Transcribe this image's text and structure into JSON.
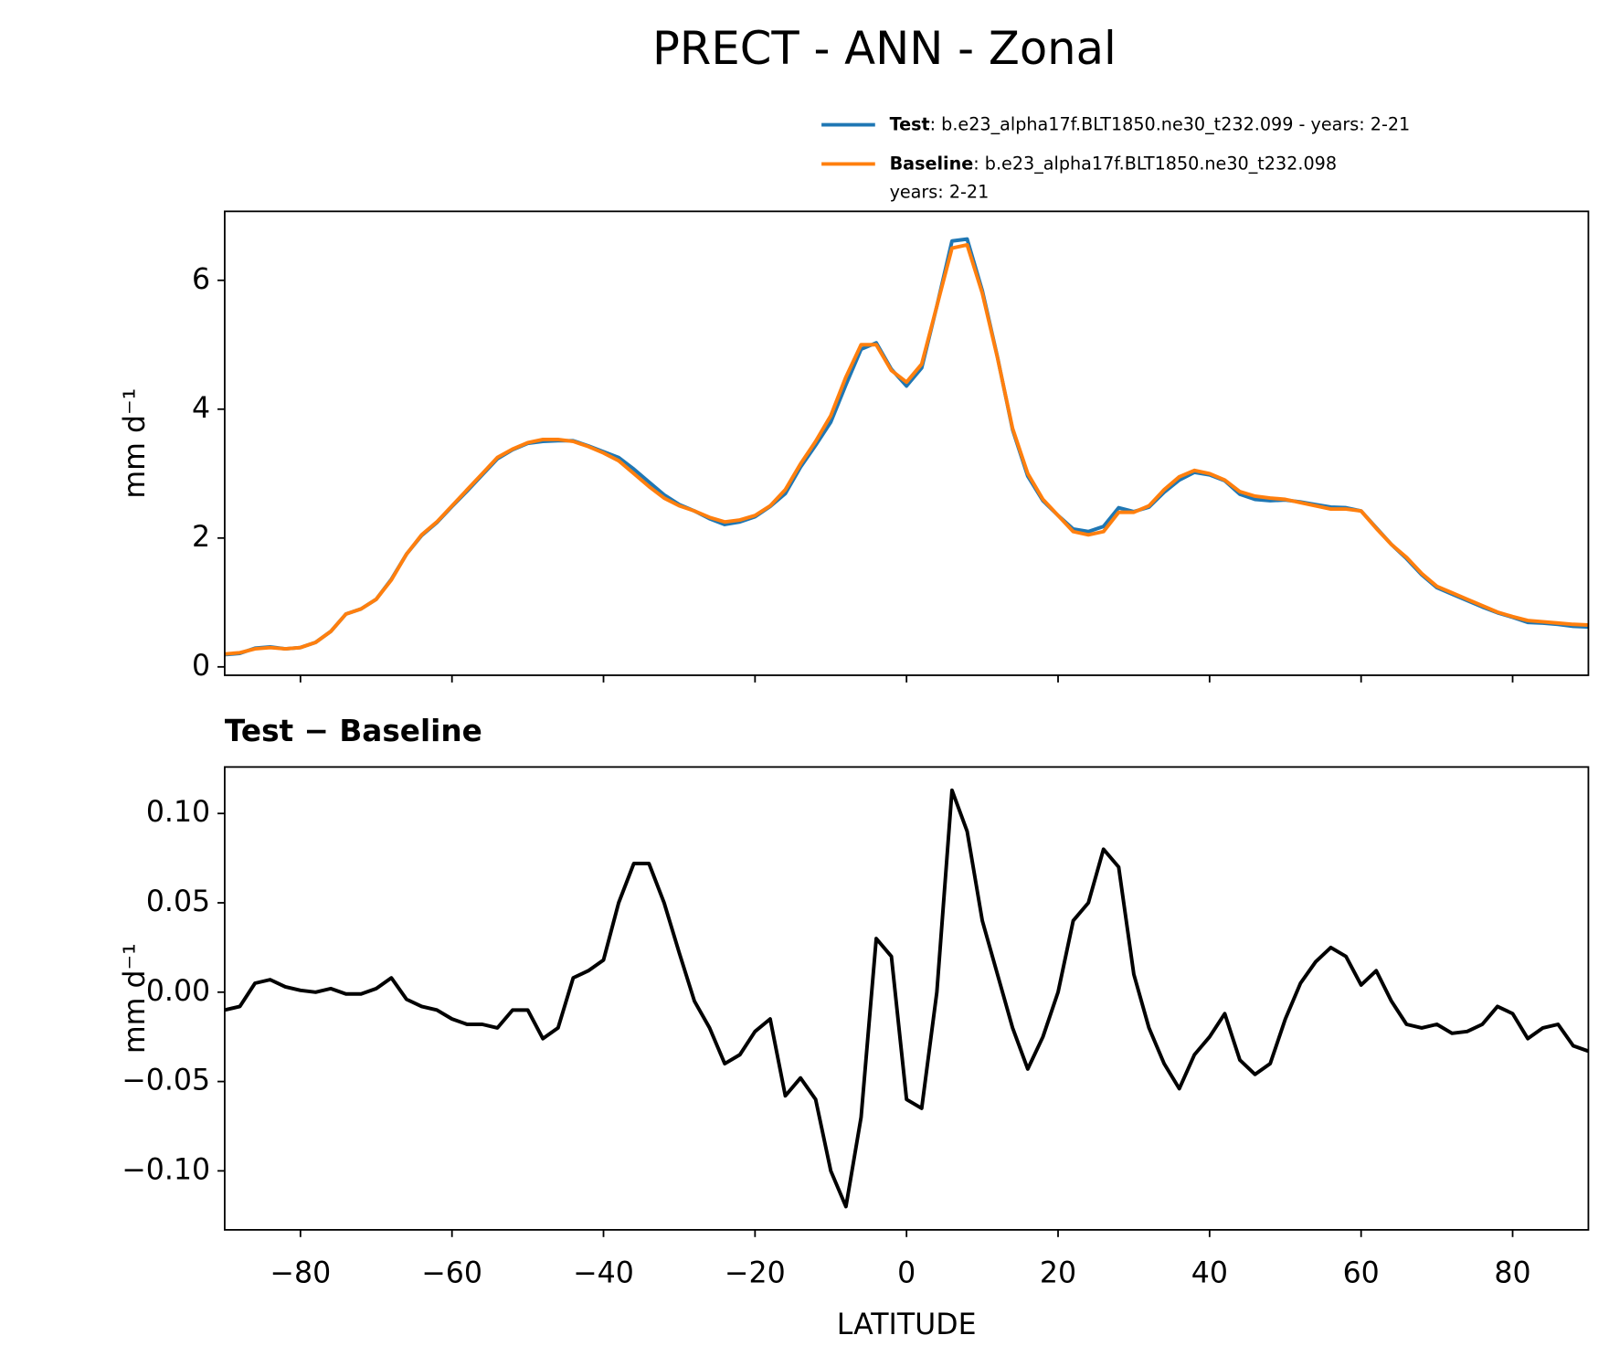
{
  "chart_data": [
    {
      "type": "line",
      "title": "PRECT - ANN - Zonal",
      "ylabel": "mm d⁻¹",
      "x": [
        -90,
        -88,
        -86,
        -84,
        -82,
        -80,
        -78,
        -76,
        -74,
        -72,
        -70,
        -68,
        -66,
        -64,
        -62,
        -60,
        -58,
        -56,
        -54,
        -52,
        -50,
        -48,
        -46,
        -44,
        -42,
        -40,
        -38,
        -36,
        -34,
        -32,
        -30,
        -28,
        -26,
        -24,
        -22,
        -20,
        -18,
        -16,
        -14,
        -12,
        -10,
        -8,
        -6,
        -4,
        -2,
        0,
        2,
        4,
        6,
        8,
        10,
        12,
        14,
        16,
        18,
        20,
        22,
        24,
        26,
        28,
        30,
        32,
        34,
        36,
        38,
        40,
        42,
        44,
        46,
        48,
        50,
        52,
        54,
        56,
        58,
        60,
        62,
        64,
        66,
        68,
        70,
        72,
        74,
        76,
        78,
        80,
        82,
        84,
        86,
        88,
        90
      ],
      "series": [
        {
          "name": "Test",
          "description": [
            ": b.e23_alpha17f.BLT1850.ne30_t232.099 - years: 2-21"
          ],
          "color": "#1f77b4",
          "values": [
            0.19,
            0.21,
            0.29,
            0.31,
            0.28,
            0.3,
            0.38,
            0.55,
            0.82,
            0.9,
            1.05,
            1.36,
            1.75,
            2.04,
            2.24,
            2.49,
            2.73,
            2.98,
            3.23,
            3.37,
            3.47,
            3.5,
            3.51,
            3.51,
            3.43,
            3.34,
            3.25,
            3.07,
            2.87,
            2.67,
            2.52,
            2.42,
            2.3,
            2.21,
            2.25,
            2.33,
            2.49,
            2.69,
            3.1,
            3.44,
            3.8,
            4.38,
            4.93,
            5.03,
            4.62,
            4.36,
            4.64,
            5.6,
            6.61,
            6.64,
            5.84,
            4.81,
            3.68,
            2.96,
            2.58,
            2.35,
            2.14,
            2.1,
            2.18,
            2.47,
            2.41,
            2.48,
            2.71,
            2.9,
            3.02,
            2.98,
            2.89,
            2.68,
            2.6,
            2.58,
            2.59,
            2.56,
            2.52,
            2.48,
            2.47,
            2.42,
            2.16,
            1.9,
            1.68,
            1.43,
            1.23,
            1.13,
            1.03,
            0.93,
            0.84,
            0.77,
            0.69,
            0.68,
            0.66,
            0.63,
            0.62
          ]
        },
        {
          "name": "Baseline",
          "description": [
            ": b.e23_alpha17f.BLT1850.ne30_t232.098",
            "years: 2-21"
          ],
          "color": "#ff7f0e",
          "values": [
            0.2,
            0.22,
            0.28,
            0.3,
            0.28,
            0.3,
            0.38,
            0.55,
            0.82,
            0.9,
            1.05,
            1.35,
            1.75,
            2.05,
            2.25,
            2.5,
            2.75,
            3.0,
            3.25,
            3.38,
            3.48,
            3.53,
            3.53,
            3.5,
            3.42,
            3.32,
            3.2,
            3.0,
            2.8,
            2.62,
            2.5,
            2.42,
            2.32,
            2.25,
            2.28,
            2.35,
            2.5,
            2.75,
            3.15,
            3.5,
            3.9,
            4.5,
            5.0,
            5.0,
            4.6,
            4.42,
            4.7,
            5.6,
            6.5,
            6.55,
            5.8,
            4.8,
            3.7,
            3.0,
            2.6,
            2.35,
            2.1,
            2.05,
            2.1,
            2.4,
            2.4,
            2.5,
            2.75,
            2.95,
            3.05,
            3.0,
            2.9,
            2.72,
            2.65,
            2.62,
            2.6,
            2.55,
            2.5,
            2.45,
            2.45,
            2.42,
            2.15,
            1.9,
            1.7,
            1.45,
            1.25,
            1.15,
            1.05,
            0.95,
            0.85,
            0.78,
            0.72,
            0.7,
            0.68,
            0.66,
            0.65
          ]
        }
      ],
      "xlim": [
        -90,
        90
      ],
      "xticks": [
        -80,
        -60,
        -40,
        -20,
        0,
        20,
        40,
        60,
        80
      ],
      "ylim": [
        -0.13,
        7.07
      ],
      "yticks": [
        0,
        2,
        4,
        6
      ]
    },
    {
      "type": "line",
      "title": "Test − Baseline",
      "ylabel": "mm d⁻¹",
      "xlabel": "LATITUDE",
      "x": [
        -90,
        -88,
        -86,
        -84,
        -82,
        -80,
        -78,
        -76,
        -74,
        -72,
        -70,
        -68,
        -66,
        -64,
        -62,
        -60,
        -58,
        -56,
        -54,
        -52,
        -50,
        -48,
        -46,
        -44,
        -42,
        -40,
        -38,
        -36,
        -34,
        -32,
        -30,
        -28,
        -26,
        -24,
        -22,
        -20,
        -18,
        -16,
        -14,
        -12,
        -10,
        -8,
        -6,
        -4,
        -2,
        0,
        2,
        4,
        6,
        8,
        10,
        12,
        14,
        16,
        18,
        20,
        22,
        24,
        26,
        28,
        30,
        32,
        34,
        36,
        38,
        40,
        42,
        44,
        46,
        48,
        50,
        52,
        54,
        56,
        58,
        60,
        62,
        64,
        66,
        68,
        70,
        72,
        74,
        76,
        78,
        80,
        82,
        84,
        86,
        88,
        90
      ],
      "color": "#000000",
      "values": [
        -0.01,
        -0.008,
        0.005,
        0.007,
        0.003,
        0.001,
        0.0,
        0.002,
        -0.001,
        -0.001,
        0.002,
        0.008,
        -0.004,
        -0.008,
        -0.01,
        -0.015,
        -0.018,
        -0.018,
        -0.02,
        -0.01,
        -0.01,
        -0.026,
        -0.02,
        0.008,
        0.012,
        0.018,
        0.05,
        0.072,
        0.072,
        0.05,
        0.022,
        -0.005,
        -0.02,
        -0.04,
        -0.035,
        -0.022,
        -0.015,
        -0.058,
        -0.048,
        -0.06,
        -0.1,
        -0.12,
        -0.07,
        0.03,
        0.02,
        -0.06,
        -0.065,
        0.0,
        0.113,
        0.09,
        0.04,
        0.01,
        -0.02,
        -0.043,
        -0.025,
        0.0,
        0.04,
        0.05,
        0.08,
        0.07,
        0.01,
        -0.02,
        -0.04,
        -0.054,
        -0.035,
        -0.025,
        -0.012,
        -0.038,
        -0.046,
        -0.04,
        -0.015,
        0.005,
        0.017,
        0.025,
        0.02,
        0.004,
        0.012,
        -0.005,
        -0.018,
        -0.02,
        -0.018,
        -0.023,
        -0.022,
        -0.018,
        -0.008,
        -0.012,
        -0.026,
        -0.02,
        -0.018,
        -0.03,
        -0.033
      ],
      "xlim": [
        -90,
        90
      ],
      "xticks": [
        {
          "value": -80,
          "label": "−80"
        },
        {
          "value": -60,
          "label": "−60"
        },
        {
          "value": -40,
          "label": "−40"
        },
        {
          "value": -20,
          "label": "−20"
        },
        0,
        20,
        40,
        60,
        80
      ],
      "ylim": [
        -0.133,
        0.126
      ],
      "yticks": [
        {
          "value": -0.1,
          "label": "−0.10"
        },
        {
          "value": -0.05,
          "label": "−0.05"
        },
        {
          "value": 0,
          "label": "0.00"
        },
        0.05,
        {
          "value": 0.1,
          "label": "0.10"
        }
      ]
    }
  ]
}
